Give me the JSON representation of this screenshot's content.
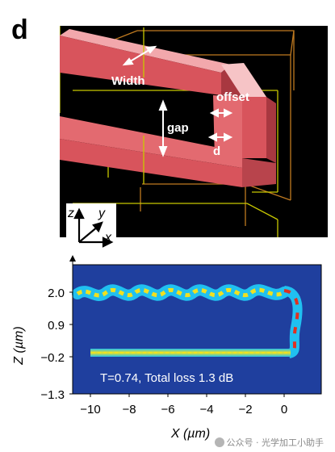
{
  "panel_label": "d",
  "diagram": {
    "labels": {
      "width": "Width",
      "offset": "offset",
      "gap": "gap",
      "d": "d"
    },
    "colors": {
      "background": "#000000",
      "waveguide": "#d8545c",
      "waveguide_dark": "#a83840",
      "waveguide_light": "#f2a8ac",
      "box_yellow": "#c8c800",
      "box_orange": "#c07a20",
      "arrow": "#ffffff"
    }
  },
  "axes_triad": {
    "z": "z",
    "y": "y",
    "x": "x"
  },
  "plot": {
    "ylabel": "Z (µm)",
    "xlabel": "X (µm)",
    "annotation": "T=0.74, Total loss 1.3 dB",
    "ytick_labels": [
      "2.0",
      "0.9",
      "−0.2",
      "−1.3"
    ],
    "xtick_labels": [
      "−10",
      "−8",
      "−6",
      "−4",
      "−2",
      "0"
    ],
    "colors": {
      "background": "#1f3f9e",
      "field_high": "#e03020",
      "field_mid": "#f0e020",
      "field_low": "#20c0f0"
    }
  },
  "watermark": "公众号 · 光学加工小助手"
}
